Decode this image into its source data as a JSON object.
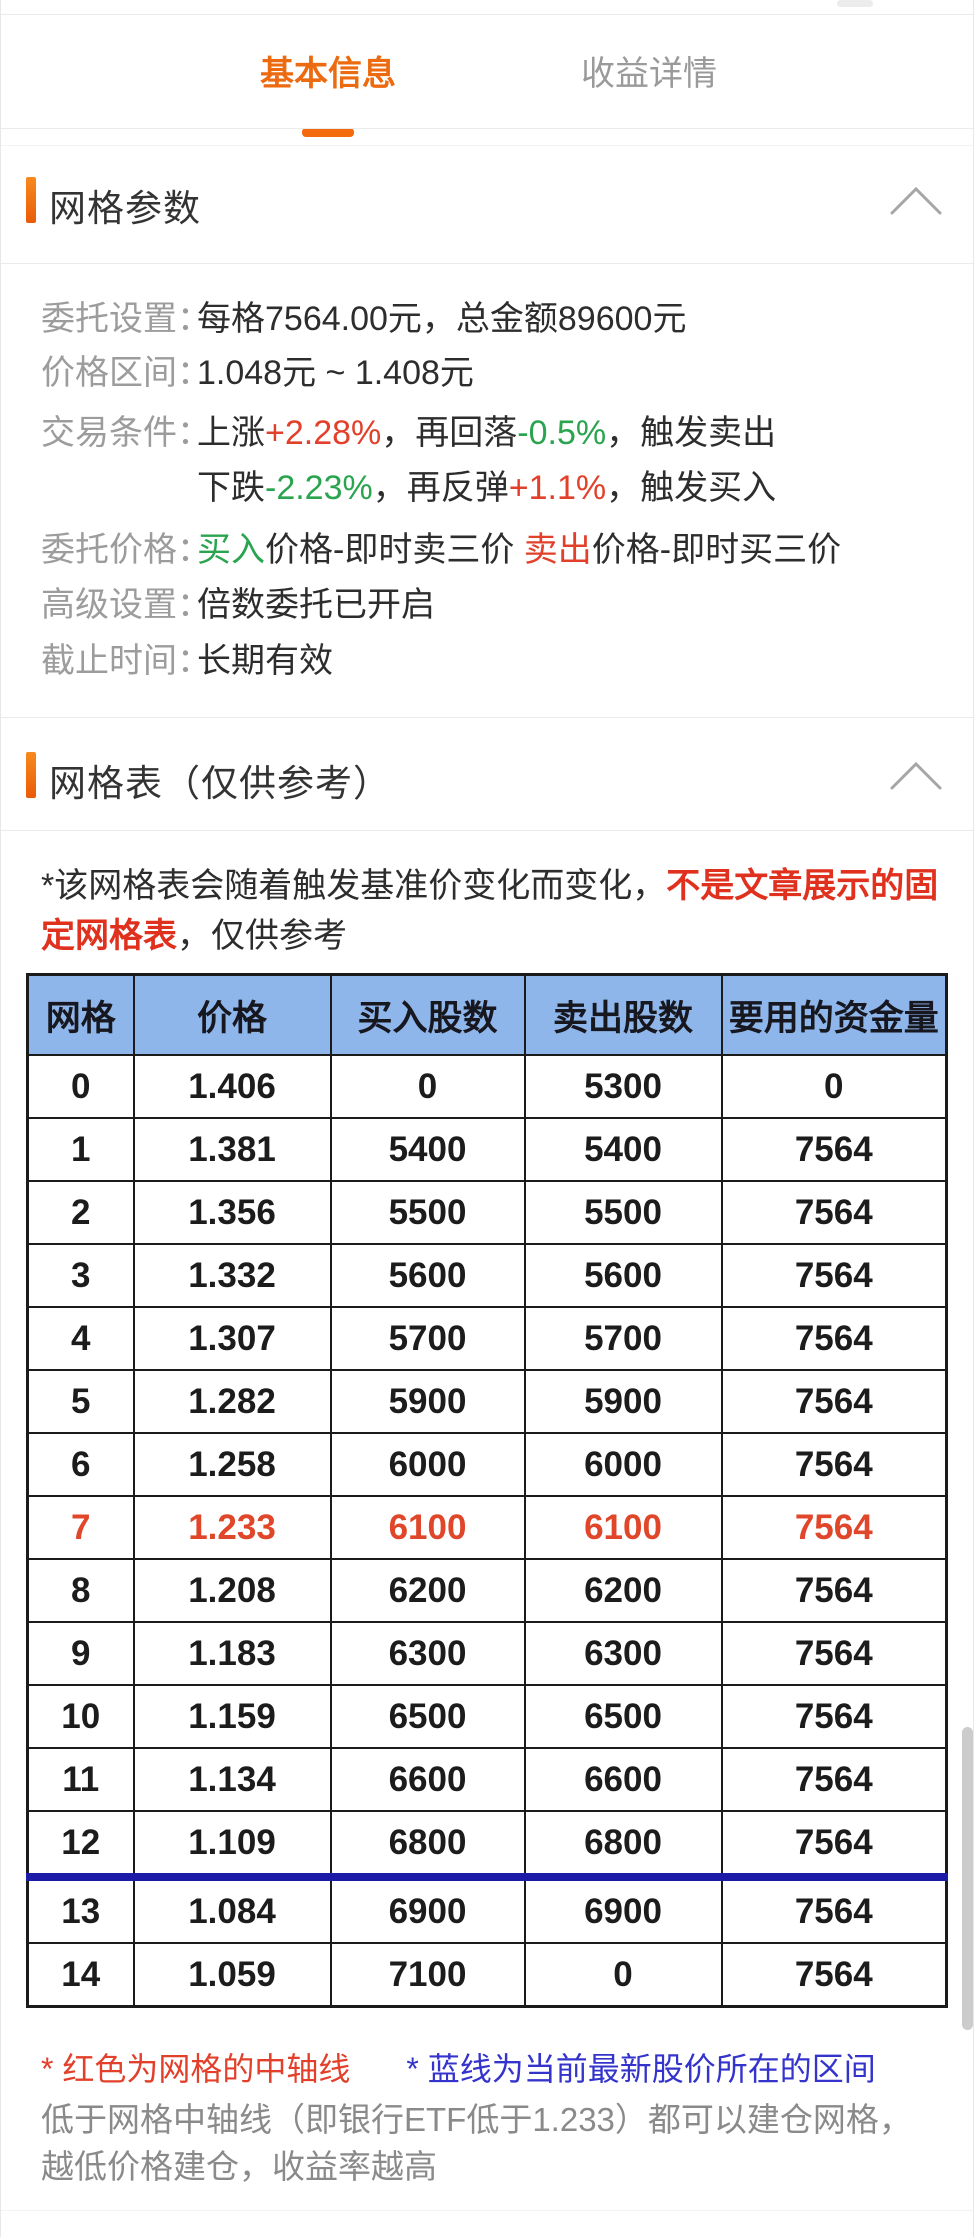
{
  "tabs": {
    "basic_info": "基本信息",
    "profit_detail": "收益详情"
  },
  "sections": {
    "params_title": "网格参数",
    "table_title": "网格表（仅供参考）"
  },
  "params": [
    {
      "label": "委托设置：",
      "segments": [
        {
          "t": "每格7564.00元，总金额89600元",
          "c": "dark"
        }
      ]
    },
    {
      "label": "价格区间：",
      "segments": [
        {
          "t": "1.048元 ~ 1.408元",
          "c": "dark"
        }
      ]
    },
    {
      "label": "交易条件：",
      "segments": [
        {
          "t": "上涨",
          "c": "dark"
        },
        {
          "t": "+2.28%",
          "c": "red"
        },
        {
          "t": "，再回落",
          "c": "dark"
        },
        {
          "t": "-0.5%",
          "c": "green"
        },
        {
          "t": "，触发卖出",
          "c": "dark"
        }
      ]
    },
    {
      "label": "",
      "segments": [
        {
          "t": "下跌",
          "c": "dark"
        },
        {
          "t": "-2.23%",
          "c": "green"
        },
        {
          "t": "，再反弹",
          "c": "dark"
        },
        {
          "t": "+1.1%",
          "c": "red"
        },
        {
          "t": "，触发买入",
          "c": "dark"
        }
      ]
    },
    {
      "label": "委托价格：",
      "segments": [
        {
          "t": "买入",
          "c": "green"
        },
        {
          "t": "价格-即时卖三价  ",
          "c": "dark"
        },
        {
          "t": "卖出",
          "c": "red"
        },
        {
          "t": "价格-即时买三价",
          "c": "dark"
        }
      ]
    },
    {
      "label": "高级设置：",
      "segments": [
        {
          "t": "倍数委托已开启",
          "c": "dark"
        }
      ]
    },
    {
      "label": "截止时间：",
      "segments": [
        {
          "t": "长期有效",
          "c": "dark"
        }
      ]
    }
  ],
  "note": {
    "segments": [
      {
        "t": "*该网格表会随着触发基准价变化而变化，",
        "c": "dark"
      },
      {
        "t": "不是文章展示的固定网格表",
        "c": "red-bold"
      },
      {
        "t": "，仅供参考",
        "c": "dark"
      }
    ]
  },
  "grid_table": {
    "headers": [
      "网格",
      "价格",
      "买入股数",
      "卖出股数",
      "要用的资金量"
    ],
    "rows": [
      {
        "cells": [
          "0",
          "1.406",
          "0",
          "5300",
          "0"
        ],
        "highlight": false,
        "blue_line_above": false
      },
      {
        "cells": [
          "1",
          "1.381",
          "5400",
          "5400",
          "7564"
        ],
        "highlight": false,
        "blue_line_above": false
      },
      {
        "cells": [
          "2",
          "1.356",
          "5500",
          "5500",
          "7564"
        ],
        "highlight": false,
        "blue_line_above": false
      },
      {
        "cells": [
          "3",
          "1.332",
          "5600",
          "5600",
          "7564"
        ],
        "highlight": false,
        "blue_line_above": false
      },
      {
        "cells": [
          "4",
          "1.307",
          "5700",
          "5700",
          "7564"
        ],
        "highlight": false,
        "blue_line_above": false
      },
      {
        "cells": [
          "5",
          "1.282",
          "5900",
          "5900",
          "7564"
        ],
        "highlight": false,
        "blue_line_above": false
      },
      {
        "cells": [
          "6",
          "1.258",
          "6000",
          "6000",
          "7564"
        ],
        "highlight": false,
        "blue_line_above": false
      },
      {
        "cells": [
          "7",
          "1.233",
          "6100",
          "6100",
          "7564"
        ],
        "highlight": true,
        "blue_line_above": false
      },
      {
        "cells": [
          "8",
          "1.208",
          "6200",
          "6200",
          "7564"
        ],
        "highlight": false,
        "blue_line_above": false
      },
      {
        "cells": [
          "9",
          "1.183",
          "6300",
          "6300",
          "7564"
        ],
        "highlight": false,
        "blue_line_above": false
      },
      {
        "cells": [
          "10",
          "1.159",
          "6500",
          "6500",
          "7564"
        ],
        "highlight": false,
        "blue_line_above": false
      },
      {
        "cells": [
          "11",
          "1.134",
          "6600",
          "6600",
          "7564"
        ],
        "highlight": false,
        "blue_line_above": false
      },
      {
        "cells": [
          "12",
          "1.109",
          "6800",
          "6800",
          "7564"
        ],
        "highlight": false,
        "blue_line_above": false
      },
      {
        "cells": [
          "13",
          "1.084",
          "6900",
          "6900",
          "7564"
        ],
        "highlight": false,
        "blue_line_above": true
      },
      {
        "cells": [
          "14",
          "1.059",
          "7100",
          "0",
          "7564"
        ],
        "highlight": false,
        "blue_line_above": false
      }
    ]
  },
  "footnotes": [
    {
      "text": "* 红色为网格的中轴线",
      "color_class": "fn-red"
    },
    {
      "text": "* 蓝线为当前最新股价所在的区间",
      "color_class": "fn-blue"
    }
  ],
  "bottom_note": "低于网格中轴线（即银行ETF低于1.233）都可以建仓网格，越低价格建仓，收益率越高",
  "colors": {
    "accent_orange": "#ec6a10",
    "rise_red": "#e2402a",
    "fall_green": "#2aa44e",
    "table_header_blue": "#8fb6ea",
    "current_price_line_blue": "#1b1ba8",
    "footnote_blue": "#3434cc",
    "highlight_row_red": "#e0462a"
  }
}
